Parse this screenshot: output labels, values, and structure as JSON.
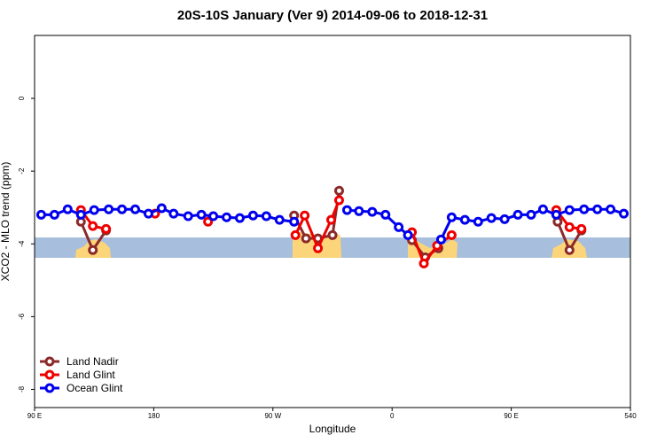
{
  "chart_data": {
    "type": "line",
    "title": "20S-10S January (Ver 9)   2014-09-06 to 2018-12-31",
    "xlabel": "Longitude",
    "ylabel": "XCO2 - MLO trend (ppm)",
    "xlim": [
      90,
      540
    ],
    "ylim": [
      -8.5,
      1.73
    ],
    "xticks": [
      {
        "value": 90,
        "label": "90 E"
      },
      180,
      {
        "value": 270,
        "label": "90 W"
      },
      {
        "value": 360,
        "label": "0"
      },
      {
        "value": 450,
        "label": "90 E"
      },
      540
    ],
    "yticks": [
      0,
      -2,
      -4,
      -6,
      -8
    ],
    "legend": "bottom-left",
    "series": [
      {
        "name": "Land Nadir",
        "color": "#8b2a2a",
        "x": [
          125,
          134,
          144,
          null,
          286,
          295,
          304,
          315,
          320,
          null,
          375,
          385,
          395,
          null,
          485,
          494,
          503
        ],
        "values": [
          -3.39,
          -4.17,
          -3.63,
          null,
          -3.22,
          -3.85,
          -3.85,
          -3.76,
          -2.54,
          null,
          -3.9,
          -4.37,
          -4.12,
          null,
          -3.39,
          -4.17,
          -3.63
        ]
      },
      {
        "name": "Land Glint",
        "color": "#ee0000",
        "x": [
          125,
          134,
          144,
          null,
          181,
          null,
          221,
          null,
          287,
          294,
          304,
          314,
          320,
          null,
          375,
          384,
          394,
          405,
          null,
          484,
          494,
          503
        ],
        "values": [
          -3.07,
          -3.51,
          -3.59,
          null,
          -3.17,
          null,
          -3.39,
          null,
          -3.76,
          -3.22,
          -4.12,
          -3.34,
          -2.8,
          null,
          -3.68,
          -4.54,
          -4.05,
          -3.76,
          null,
          -3.07,
          -3.54,
          -3.59
        ]
      },
      {
        "name": "Ocean Glint",
        "color": "#0000ee",
        "x": [
          95,
          105,
          115,
          125,
          135,
          146,
          156,
          166,
          176,
          186,
          195,
          206,
          216,
          225,
          235,
          245,
          255,
          265,
          275,
          286,
          null,
          326,
          335,
          345,
          355,
          365,
          372,
          null,
          397,
          405,
          415,
          425,
          435,
          445,
          455,
          465,
          474,
          484,
          494,
          505,
          515,
          525,
          535
        ],
        "values": [
          -3.2,
          -3.2,
          -3.05,
          -3.2,
          -3.07,
          -3.05,
          -3.05,
          -3.05,
          -3.17,
          -3.02,
          -3.17,
          -3.24,
          -3.2,
          -3.24,
          -3.27,
          -3.29,
          -3.22,
          -3.24,
          -3.34,
          -3.39,
          null,
          -3.07,
          -3.1,
          -3.12,
          -3.2,
          -3.54,
          -3.76,
          null,
          -3.88,
          -3.27,
          -3.34,
          -3.39,
          -3.29,
          -3.32,
          -3.2,
          -3.2,
          -3.05,
          -3.2,
          -3.07,
          -3.05,
          -3.05,
          -3.05,
          -3.17
        ]
      }
    ]
  }
}
